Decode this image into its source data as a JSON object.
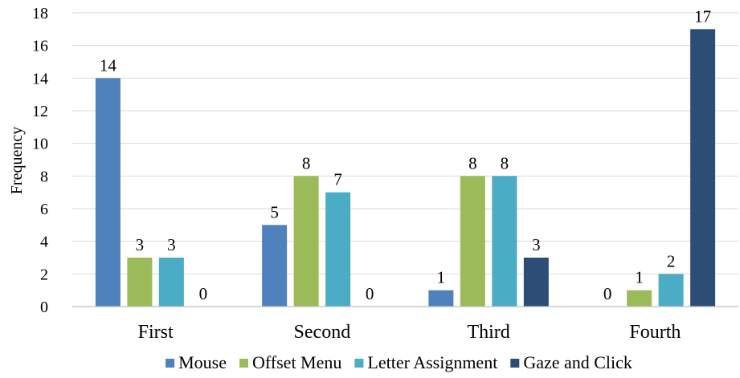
{
  "chart_data": {
    "type": "bar",
    "categories": [
      "First",
      "Second",
      "Third",
      "Fourth"
    ],
    "series": [
      {
        "name": "Mouse",
        "color": "#4f81bd",
        "values": [
          14,
          5,
          1,
          0
        ]
      },
      {
        "name": "Offset Menu",
        "color": "#9bbb59",
        "values": [
          3,
          8,
          8,
          1
        ]
      },
      {
        "name": "Letter Assignment",
        "color": "#4bacc6",
        "values": [
          3,
          7,
          8,
          2
        ]
      },
      {
        "name": "Gaze and Click",
        "color": "#2c4d75",
        "values": [
          0,
          0,
          3,
          17
        ]
      }
    ],
    "ylabel": "Frequency",
    "xlabel": "",
    "ylim": [
      0,
      18
    ],
    "yticks": [
      0,
      2,
      4,
      6,
      8,
      10,
      12,
      14,
      16,
      18
    ],
    "grid": true,
    "legend_position": "bottom",
    "data_labels": true
  }
}
